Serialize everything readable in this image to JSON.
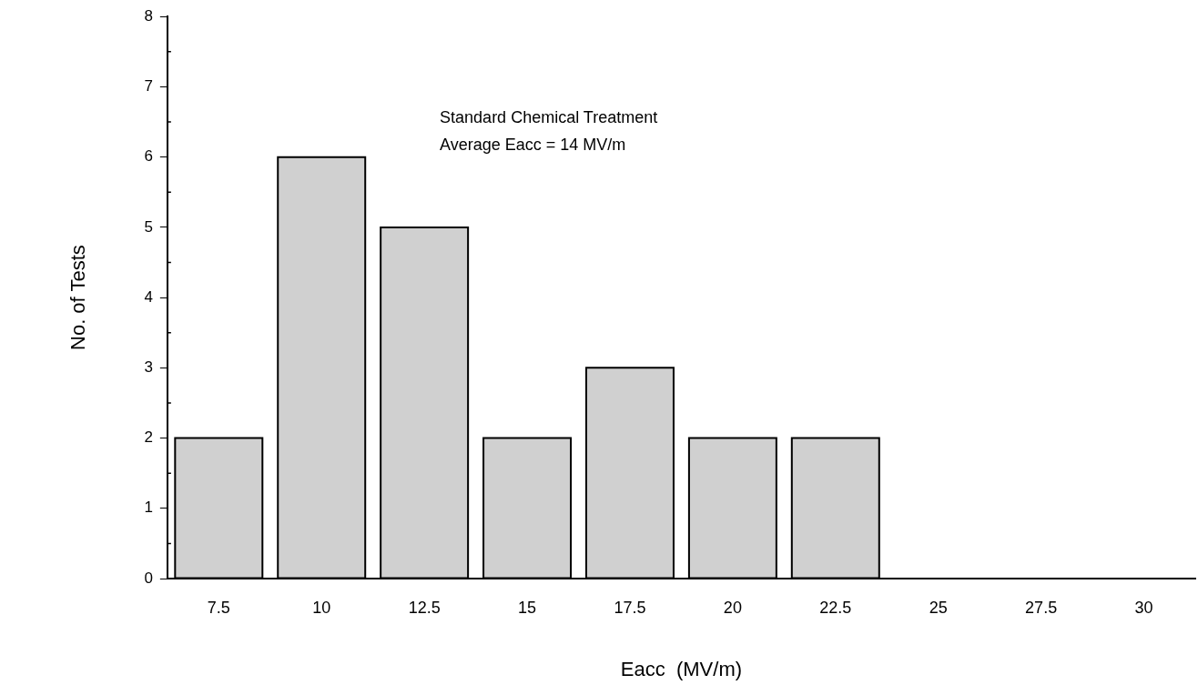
{
  "chart_data": {
    "type": "bar",
    "xlabel": "Eacc  (MV/m)",
    "ylabel": "No. of Tests",
    "categories": [
      "7.5",
      "10",
      "12.5",
      "15",
      "17.5",
      "20",
      "22.5",
      "25",
      "27.5",
      "30"
    ],
    "values": [
      2,
      6,
      5,
      2,
      3,
      2,
      2,
      0,
      0,
      0
    ],
    "color": "#d0d0d0",
    "ylim": [
      0,
      8
    ],
    "yticks": [
      0,
      1,
      2,
      3,
      4,
      5,
      6,
      7,
      8
    ],
    "grid": false,
    "legend": false,
    "annotations": [
      "Standard Chemical Treatment",
      "Average Eacc = 14 MV/m"
    ]
  }
}
